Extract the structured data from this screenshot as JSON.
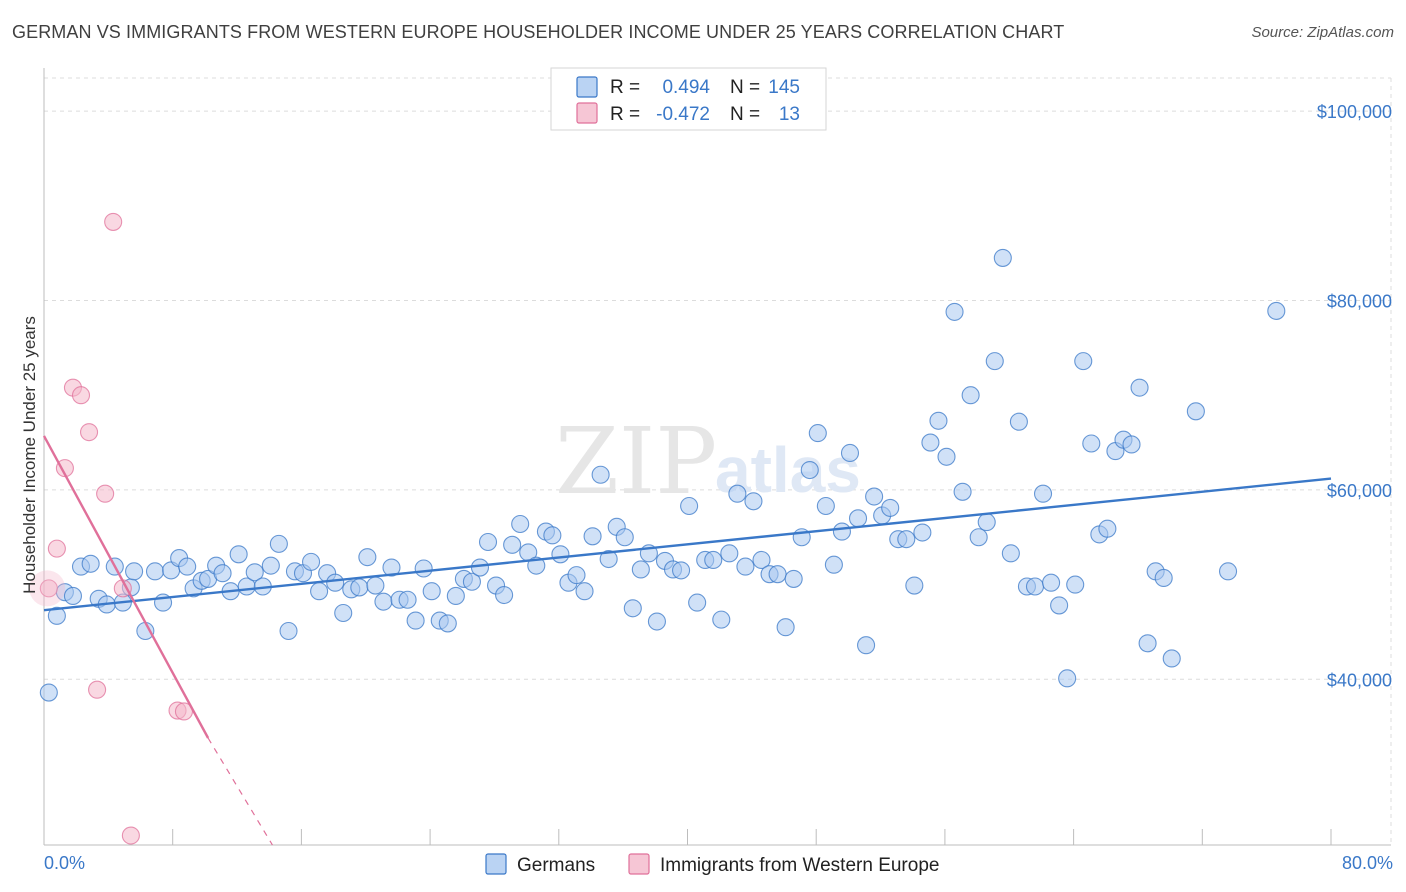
{
  "title": "GERMAN VS IMMIGRANTS FROM WESTERN EUROPE HOUSEHOLDER INCOME UNDER 25 YEARS CORRELATION CHART",
  "source": "Source: ZipAtlas.com",
  "watermark": {
    "part1": "ZIP",
    "part2": "atlas"
  },
  "legend": {
    "rows": [
      {
        "r_label": "R =",
        "r_value": "0.494",
        "n_label": "N =",
        "n_value": "145",
        "color": "#a9c8f0"
      },
      {
        "r_label": "R =",
        "r_value": "-0.472",
        "n_label": "N =",
        "n_value": "13",
        "color": "#f4b8cb"
      }
    ]
  },
  "bottom_legend": [
    {
      "label": "Germans",
      "color": "#a9c8f0"
    },
    {
      "label": "Immigrants from Western Europe",
      "color": "#f4b8cb"
    }
  ],
  "colors": {
    "blue": "#3a78c8",
    "blue_fill": "#a9c8f0",
    "pink": "#e0709a",
    "pink_fill": "#f4b8cb",
    "grid": "#dcdcdc"
  },
  "chart_data": {
    "type": "scatter",
    "title": "GERMAN VS IMMIGRANTS FROM WESTERN EUROPE HOUSEHOLDER INCOME UNDER 25 YEARS CORRELATION CHART",
    "xlabel": "",
    "ylabel": "Householder Income Under 25 years",
    "xlim": [
      0,
      80
    ],
    "ylim": [
      22500,
      103500
    ],
    "x_tick_labels": [
      "0.0%",
      "80.0%"
    ],
    "y_ticks": [
      40000,
      60000,
      80000,
      100000
    ],
    "y_tick_labels": [
      "$40,000",
      "$60,000",
      "$80,000",
      "$100,000"
    ],
    "grid": true,
    "legend_position": "top-center",
    "series": [
      {
        "name": "Germans",
        "color": "#3a78c8",
        "trend": {
          "x": [
            0,
            80
          ],
          "y": [
            47300,
            61200
          ]
        },
        "points": [
          [
            0.3,
            38600
          ],
          [
            0.8,
            46700
          ],
          [
            1.3,
            49200
          ],
          [
            1.8,
            48800
          ],
          [
            2.3,
            51900
          ],
          [
            2.9,
            52200
          ],
          [
            3.4,
            48500
          ],
          [
            3.9,
            47900
          ],
          [
            4.4,
            51900
          ],
          [
            4.9,
            48100
          ],
          [
            5.4,
            49700
          ],
          [
            5.6,
            51400
          ],
          [
            6.3,
            45100
          ],
          [
            6.9,
            51400
          ],
          [
            7.4,
            48100
          ],
          [
            7.9,
            51500
          ],
          [
            8.4,
            52800
          ],
          [
            8.9,
            51900
          ],
          [
            9.3,
            49600
          ],
          [
            9.8,
            50400
          ],
          [
            10.2,
            50600
          ],
          [
            10.7,
            52000
          ],
          [
            11.1,
            51200
          ],
          [
            11.6,
            49300
          ],
          [
            12.1,
            53200
          ],
          [
            12.6,
            49800
          ],
          [
            13.1,
            51300
          ],
          [
            13.6,
            49800
          ],
          [
            14.1,
            52000
          ],
          [
            14.6,
            54300
          ],
          [
            15.2,
            45100
          ],
          [
            15.6,
            51400
          ],
          [
            16.1,
            51200
          ],
          [
            16.6,
            52400
          ],
          [
            17.1,
            49300
          ],
          [
            17.6,
            51200
          ],
          [
            18.1,
            50200
          ],
          [
            18.6,
            47000
          ],
          [
            19.1,
            49500
          ],
          [
            19.6,
            49700
          ],
          [
            20.1,
            52900
          ],
          [
            20.6,
            49900
          ],
          [
            21.1,
            48200
          ],
          [
            21.6,
            51800
          ],
          [
            22.1,
            48400
          ],
          [
            22.6,
            48400
          ],
          [
            23.1,
            46200
          ],
          [
            23.6,
            51700
          ],
          [
            24.1,
            49300
          ],
          [
            24.6,
            46200
          ],
          [
            25.1,
            45900
          ],
          [
            25.6,
            48800
          ],
          [
            26.1,
            50600
          ],
          [
            26.6,
            50300
          ],
          [
            27.1,
            51800
          ],
          [
            27.6,
            54500
          ],
          [
            28.1,
            49900
          ],
          [
            28.6,
            48900
          ],
          [
            29.1,
            54200
          ],
          [
            29.6,
            56400
          ],
          [
            30.1,
            53400
          ],
          [
            30.6,
            52000
          ],
          [
            31.2,
            55600
          ],
          [
            31.6,
            55200
          ],
          [
            32.1,
            53200
          ],
          [
            32.6,
            50200
          ],
          [
            33.1,
            51000
          ],
          [
            33.6,
            49300
          ],
          [
            34.1,
            55100
          ],
          [
            34.6,
            61600
          ],
          [
            35.1,
            52700
          ],
          [
            35.6,
            56100
          ],
          [
            36.1,
            55000
          ],
          [
            36.6,
            47500
          ],
          [
            37.1,
            51600
          ],
          [
            37.6,
            53300
          ],
          [
            38.1,
            46100
          ],
          [
            38.6,
            52500
          ],
          [
            39.1,
            51600
          ],
          [
            39.6,
            51500
          ],
          [
            40.1,
            58300
          ],
          [
            40.6,
            48100
          ],
          [
            41.1,
            52600
          ],
          [
            41.6,
            52600
          ],
          [
            42.1,
            46300
          ],
          [
            42.6,
            53300
          ],
          [
            43.1,
            59600
          ],
          [
            43.6,
            51900
          ],
          [
            44.1,
            58800
          ],
          [
            44.6,
            52600
          ],
          [
            45.1,
            51100
          ],
          [
            45.6,
            51100
          ],
          [
            46.1,
            45500
          ],
          [
            46.6,
            50600
          ],
          [
            47.1,
            55000
          ],
          [
            47.6,
            62100
          ],
          [
            48.1,
            66000
          ],
          [
            48.6,
            58300
          ],
          [
            49.1,
            52100
          ],
          [
            49.6,
            55600
          ],
          [
            50.1,
            63900
          ],
          [
            50.6,
            57000
          ],
          [
            51.1,
            43600
          ],
          [
            51.6,
            59300
          ],
          [
            52.1,
            57300
          ],
          [
            52.6,
            58100
          ],
          [
            53.1,
            54800
          ],
          [
            53.6,
            54800
          ],
          [
            54.1,
            49900
          ],
          [
            54.6,
            55500
          ],
          [
            55.1,
            65000
          ],
          [
            55.6,
            67300
          ],
          [
            56.1,
            63500
          ],
          [
            56.6,
            78800
          ],
          [
            57.1,
            59800
          ],
          [
            57.6,
            70000
          ],
          [
            58.1,
            55000
          ],
          [
            58.6,
            56600
          ],
          [
            59.1,
            73600
          ],
          [
            59.6,
            84500
          ],
          [
            60.1,
            53300
          ],
          [
            60.6,
            67200
          ],
          [
            61.1,
            49800
          ],
          [
            61.6,
            49800
          ],
          [
            62.1,
            59600
          ],
          [
            62.6,
            50200
          ],
          [
            63.1,
            47800
          ],
          [
            63.6,
            40100
          ],
          [
            64.1,
            50000
          ],
          [
            64.6,
            73600
          ],
          [
            65.1,
            64900
          ],
          [
            65.6,
            55300
          ],
          [
            66.1,
            55900
          ],
          [
            66.6,
            64100
          ],
          [
            67.1,
            65300
          ],
          [
            67.6,
            64800
          ],
          [
            68.1,
            70800
          ],
          [
            68.6,
            43800
          ],
          [
            69.1,
            51400
          ],
          [
            69.6,
            50700
          ],
          [
            70.1,
            42200
          ],
          [
            71.6,
            68300
          ],
          [
            73.6,
            51400
          ],
          [
            76.6,
            78900
          ]
        ]
      },
      {
        "name": "Immigrants from Western Europe",
        "color": "#e0709a",
        "trend": {
          "x": [
            0,
            10.2
          ],
          "y": [
            65700,
            33800
          ]
        },
        "trend_dashed": {
          "x": [
            10.2,
            14.2
          ],
          "y": [
            33800,
            22500
          ]
        },
        "points": [
          [
            0.3,
            49600
          ],
          [
            0.8,
            53800
          ],
          [
            1.3,
            62300
          ],
          [
            1.8,
            70800
          ],
          [
            2.3,
            70000
          ],
          [
            2.8,
            66100
          ],
          [
            3.3,
            38900
          ],
          [
            3.8,
            59600
          ],
          [
            4.3,
            88300
          ],
          [
            4.9,
            49600
          ],
          [
            5.4,
            23500
          ],
          [
            8.3,
            36700
          ],
          [
            8.7,
            36600
          ]
        ]
      }
    ]
  }
}
